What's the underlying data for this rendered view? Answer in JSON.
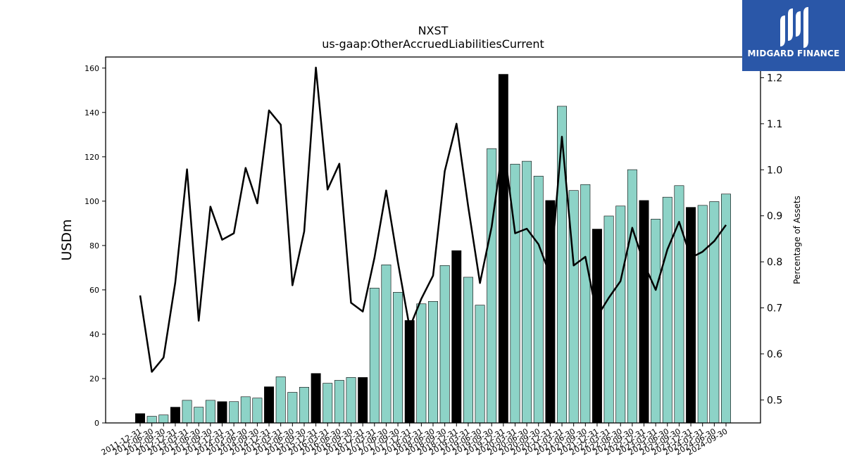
{
  "chart_data": {
    "type": "bar",
    "title": "NXST",
    "subtitle": "us-gaap:OtherAccruedLiabilitiesCurrent",
    "ylabel": "USDm",
    "y2label": "Percentage of Assets",
    "ylim": [
      0,
      165
    ],
    "y2lim": [
      0.45,
      1.245
    ],
    "yticks": [
      0,
      20,
      40,
      60,
      80,
      100,
      120,
      140,
      160
    ],
    "y2ticks": [
      0.5,
      0.6,
      0.7,
      0.8,
      0.9,
      1.0,
      1.1,
      1.2
    ],
    "grid": false,
    "categories": [
      "2011-12-31",
      "2012-06-30",
      "2012-09-30",
      "2012-12-31",
      "2013-03-31",
      "2013-06-30",
      "2013-09-30",
      "2013-12-31",
      "2014-03-31",
      "2014-06-30",
      "2014-09-30",
      "2014-12-31",
      "2015-03-31",
      "2015-06-30",
      "2015-09-30",
      "2015-12-31",
      "2016-03-31",
      "2016-06-30",
      "2016-09-30",
      "2016-12-31",
      "2017-03-31",
      "2017-06-30",
      "2017-09-30",
      "2017-12-31",
      "2018-03-31",
      "2018-06-30",
      "2018-09-30",
      "2018-12-31",
      "2019-03-31",
      "2019-06-30",
      "2019-09-30",
      "2019-12-31",
      "2020-03-31",
      "2020-06-30",
      "2020-09-30",
      "2020-12-31",
      "2021-03-31",
      "2021-06-30",
      "2021-09-30",
      "2021-12-31",
      "2022-03-31",
      "2022-06-30",
      "2022-09-30",
      "2022-12-31",
      "2023-03-31",
      "2023-06-30",
      "2023-09-30",
      "2023-12-31",
      "2024-03-31",
      "2024-06-30",
      "2024-09-30"
    ],
    "series": [
      {
        "kind": "bar",
        "values": [
          4.2,
          3.0,
          3.6,
          7.1,
          10.2,
          7.1,
          10.2,
          9.6,
          9.6,
          11.8,
          11.2,
          16.3,
          20.8,
          13.8,
          16.1,
          22.3,
          17.9,
          19.2,
          20.5,
          20.5,
          60.8,
          71.3,
          58.9,
          46.2,
          53.7,
          54.8,
          71.0,
          77.7,
          65.7,
          53.1,
          123.7,
          157.2,
          116.7,
          118.0,
          111.3,
          100.3,
          142.8,
          104.8,
          107.5,
          87.4,
          93.3,
          97.8,
          114.2,
          100.3,
          91.9,
          101.8,
          107.0,
          97.2,
          98.1,
          99.8,
          103.2
        ]
      },
      {
        "kind": "line",
        "axis": "right",
        "values": [
          0.727,
          0.561,
          0.592,
          0.755,
          1.001,
          0.672,
          0.92,
          0.848,
          0.862,
          1.004,
          0.927,
          1.129,
          1.098,
          0.749,
          0.866,
          1.222,
          0.957,
          1.013,
          0.711,
          0.692,
          0.809,
          0.955,
          0.799,
          0.657,
          0.72,
          0.77,
          0.997,
          1.1,
          0.92,
          0.754,
          0.876,
          1.06,
          0.862,
          0.872,
          0.838,
          0.77,
          1.072,
          0.792,
          0.811,
          0.681,
          0.722,
          0.758,
          0.874,
          0.796,
          0.739,
          0.827,
          0.887,
          0.809,
          0.822,
          0.845,
          0.88
        ]
      }
    ],
    "highlight_color": "#000000",
    "bar_color": "#8dd3c7",
    "line_color": "#000000"
  },
  "logo": {
    "text": "MIDGARD FINANCE",
    "icon": "midgard-logo-icon",
    "background": "#2a57a8"
  }
}
